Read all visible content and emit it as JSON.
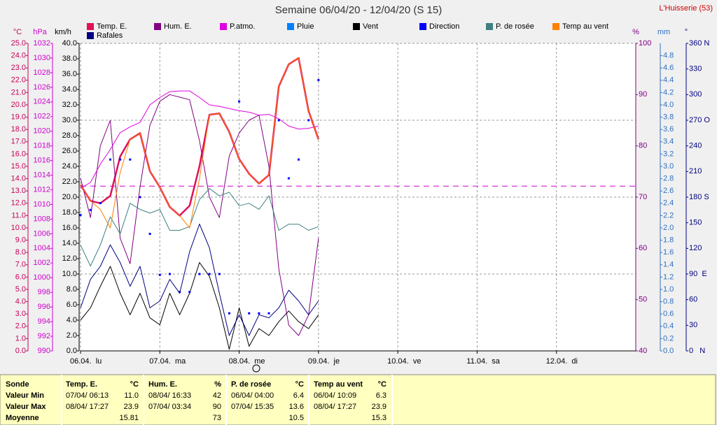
{
  "chart_data": {
    "type": "line",
    "title": "Semaine 06/04/20 - 12/04/20 (S 15)",
    "location": "L'Huisserie (53)",
    "xlim": [
      0,
      168
    ],
    "xticks": [
      {
        "value": 0,
        "label": "06.04.  lu"
      },
      {
        "value": 24,
        "label": "07.04.  ma"
      },
      {
        "value": 48,
        "label": "08.04.  me"
      },
      {
        "value": 72,
        "label": "09.04.  je"
      },
      {
        "value": 96,
        "label": "10.04.  ve"
      },
      {
        "value": 120,
        "label": "11.04.  sa"
      },
      {
        "value": 144,
        "label": "12.04.  di"
      }
    ],
    "x": [
      0,
      3,
      6,
      9,
      12,
      15,
      18,
      21,
      24,
      27,
      30,
      33,
      36,
      39,
      42,
      45,
      48,
      51,
      54,
      57,
      60,
      63,
      66,
      69,
      72
    ],
    "axes": [
      {
        "id": "temp",
        "label": "°C",
        "side": "left",
        "color": "#c8005a",
        "lim": [
          0,
          25
        ],
        "ticks": [
          {
            "value": 0,
            "label": "0.0"
          },
          {
            "value": 1,
            "label": "1.0"
          },
          {
            "value": 2,
            "label": "2.0"
          },
          {
            "value": 3,
            "label": "3.0"
          },
          {
            "value": 4,
            "label": "4.0"
          },
          {
            "value": 5,
            "label": "5.0"
          },
          {
            "value": 6,
            "label": "6.0"
          },
          {
            "value": 7,
            "label": "7.0"
          },
          {
            "value": 8,
            "label": "8.0"
          },
          {
            "value": 9,
            "label": "9.0"
          },
          {
            "value": 10,
            "label": "10.0"
          },
          {
            "value": 11,
            "label": "11.0"
          },
          {
            "value": 12,
            "label": "12.0"
          },
          {
            "value": 13,
            "label": "13.0"
          },
          {
            "value": 14,
            "label": "14.0"
          },
          {
            "value": 15,
            "label": "15.0"
          },
          {
            "value": 16,
            "label": "16.0"
          },
          {
            "value": 17,
            "label": "17.0"
          },
          {
            "value": 18,
            "label": "18.0"
          },
          {
            "value": 19,
            "label": "19.0"
          },
          {
            "value": 20,
            "label": "20.0"
          },
          {
            "value": 21,
            "label": "21.0"
          },
          {
            "value": 22,
            "label": "22.0"
          },
          {
            "value": 23,
            "label": "23.0"
          },
          {
            "value": 24,
            "label": "24.0"
          },
          {
            "value": 25,
            "label": "25.0"
          }
        ]
      },
      {
        "id": "hpa",
        "label": "hPa",
        "side": "left",
        "color": "#d000d0",
        "lim": [
          990,
          1032
        ],
        "ticks": [
          990,
          992,
          994,
          996,
          998,
          1000,
          1002,
          1004,
          1006,
          1008,
          1010,
          1012,
          1014,
          1016,
          1018,
          1020,
          1022,
          1024,
          1026,
          1028,
          1030,
          1032
        ]
      },
      {
        "id": "kmh",
        "label": "km/h",
        "side": "left",
        "color": "#000000",
        "lim": [
          0,
          40
        ],
        "grid": [
          10,
          20,
          30,
          40
        ],
        "ticks": [
          {
            "value": 0,
            "label": "0.0"
          },
          {
            "value": 2,
            "label": "2.0"
          },
          {
            "value": 4,
            "label": "4.0"
          },
          {
            "value": 6,
            "label": "6.0"
          },
          {
            "value": 8,
            "label": "8.0"
          },
          {
            "value": 10,
            "label": "10.0"
          },
          {
            "value": 12,
            "label": "12.0"
          },
          {
            "value": 14,
            "label": "14.0"
          },
          {
            "value": 16,
            "label": "16.0"
          },
          {
            "value": 18,
            "label": "18.0"
          },
          {
            "value": 20,
            "label": "20.0"
          },
          {
            "value": 22,
            "label": "22.0"
          },
          {
            "value": 24,
            "label": "24.0"
          },
          {
            "value": 26,
            "label": "26.0"
          },
          {
            "value": 28,
            "label": "28.0"
          },
          {
            "value": 30,
            "label": "30.0"
          },
          {
            "value": 32,
            "label": "32.0"
          },
          {
            "value": 34,
            "label": "34.0"
          },
          {
            "value": 36,
            "label": "36.0"
          },
          {
            "value": 38,
            "label": "38.0"
          },
          {
            "value": 40,
            "label": "40.0"
          }
        ]
      },
      {
        "id": "pct",
        "label": "%",
        "side": "right",
        "color": "#800080",
        "lim": [
          40,
          100
        ],
        "ticks": [
          40,
          50,
          60,
          70,
          80,
          90,
          100
        ]
      },
      {
        "id": "mm",
        "label": "mm",
        "side": "right",
        "color": "#3070c0",
        "lim": [
          0,
          5
        ],
        "ticks": [
          {
            "value": 0,
            "label": "0.0"
          },
          {
            "value": 0.2,
            "label": "0.2"
          },
          {
            "value": 0.4,
            "label": "0.4"
          },
          {
            "value": 0.6,
            "label": "0.6"
          },
          {
            "value": 0.8,
            "label": "0.8"
          },
          {
            "value": 1,
            "label": "1.0"
          },
          {
            "value": 1.2,
            "label": "1.2"
          },
          {
            "value": 1.4,
            "label": "1.4"
          },
          {
            "value": 1.6,
            "label": "1.6"
          },
          {
            "value": 1.8,
            "label": "1.8"
          },
          {
            "value": 2,
            "label": "2.0"
          },
          {
            "value": 2.2,
            "label": "2.2"
          },
          {
            "value": 2.4,
            "label": "2.4"
          },
          {
            "value": 2.6,
            "label": "2.6"
          },
          {
            "value": 2.8,
            "label": "2.8"
          },
          {
            "value": 3,
            "label": "3.0"
          },
          {
            "value": 3.2,
            "label": "3.2"
          },
          {
            "value": 3.4,
            "label": "3.4"
          },
          {
            "value": 3.6,
            "label": "3.6"
          },
          {
            "value": 3.8,
            "label": "3.8"
          },
          {
            "value": 4,
            "label": "4.0"
          },
          {
            "value": 4.2,
            "label": "4.2"
          },
          {
            "value": 4.4,
            "label": "4.4"
          },
          {
            "value": 4.6,
            "label": "4.6"
          },
          {
            "value": 4.8,
            "label": "4.8"
          }
        ]
      },
      {
        "id": "deg",
        "label": "°",
        "side": "right",
        "color": "#000080",
        "lim": [
          0,
          360
        ],
        "ticks": [
          {
            "value": 0,
            "label": "0   N"
          },
          30,
          60,
          {
            "value": 90,
            "label": "90  E"
          },
          120,
          150,
          {
            "value": 180,
            "label": "180 S"
          },
          210,
          240,
          {
            "value": 270,
            "label": "270 O"
          },
          300,
          330,
          {
            "value": 360,
            "label": "360 N"
          }
        ]
      }
    ],
    "reference_line": {
      "axis": "hpa",
      "value": 1012.5,
      "color": "#d000d0"
    },
    "series": [
      {
        "name": "Temp. E.",
        "color": "#e0105a",
        "axis": "temp",
        "width": 2.5,
        "values": [
          13.5,
          12.2,
          12.0,
          12.6,
          15.8,
          17.2,
          17.7,
          14.6,
          13.3,
          11.7,
          11.0,
          11.8,
          15.0,
          19.2,
          19.3,
          17.8,
          15.6,
          14.4,
          13.6,
          14.3,
          21.5,
          23.3,
          23.8,
          19.5,
          17.2
        ]
      },
      {
        "name": "Hum. E.",
        "color": "#800080",
        "axis": "pct",
        "width": 1,
        "values": [
          73.7,
          66,
          80,
          85,
          62,
          57,
          72,
          84,
          88.7,
          90,
          89.5,
          89,
          81,
          70,
          66,
          78,
          82.5,
          85,
          86,
          76,
          56,
          45,
          43,
          47,
          62
        ]
      },
      {
        "name": "P.atmo.",
        "color": "#e000e0",
        "axis": "hpa",
        "width": 1,
        "values": [
          1012.2,
          1013,
          1015.5,
          1017.5,
          1019.8,
          1020.6,
          1021.2,
          1023.6,
          1024.6,
          1025.4,
          1025.5,
          1025.5,
          1024.6,
          1023.6,
          1023.4,
          1023.1,
          1022.8,
          1022.6,
          1022.2,
          1022.3,
          1021.7,
          1020.7,
          1020.3,
          1020.4,
          1020.7
        ]
      },
      {
        "name": "Pluie",
        "color": "#0080ff",
        "axis": "mm",
        "width": 1,
        "values": [
          null,
          null,
          null,
          null,
          null,
          null,
          null,
          null,
          null,
          null,
          null,
          null,
          null,
          null,
          null,
          null,
          null,
          null,
          null,
          null,
          null,
          null,
          null,
          null,
          null
        ]
      },
      {
        "name": "Vent",
        "color": "#000000",
        "axis": "kmh",
        "width": 1,
        "values": [
          4,
          5.6,
          8.4,
          11,
          7.5,
          4.7,
          7.5,
          4.3,
          3.4,
          7.5,
          4.7,
          7.5,
          11.5,
          9.7,
          5.6,
          0.2,
          5.6,
          0.6,
          2.9,
          2,
          3.8,
          5.2,
          3.8,
          2.9,
          4.7
        ]
      },
      {
        "name": "Direction",
        "color": "#0000ff",
        "axis": "deg",
        "style": "dots",
        "values": [
          159,
          165,
          173,
          224,
          224,
          224,
          180,
          137,
          89,
          90,
          69,
          69,
          90,
          90,
          90,
          44,
          292,
          44,
          44,
          44,
          270,
          202,
          224,
          270,
          317
        ]
      },
      {
        "name": "P. de rosée",
        "color": "#408080",
        "axis": "temp",
        "width": 1,
        "values": [
          8.6,
          6.9,
          8.6,
          10.9,
          9.5,
          12,
          11.5,
          11.2,
          11.5,
          9.8,
          9.8,
          10.1,
          12.3,
          13.2,
          12.6,
          12.9,
          11.8,
          12,
          11.5,
          12.6,
          9.8,
          10.3,
          10.3,
          9.8,
          10.1
        ]
      },
      {
        "name": "Temp au vent",
        "color": "#ff8000",
        "axis": "temp",
        "width": 1,
        "values": [
          13.5,
          12.2,
          11.5,
          10.0,
          14.5,
          17.2,
          17.7,
          14.6,
          13.3,
          11.7,
          11.0,
          10.0,
          14.0,
          19.2,
          19.3,
          17.8,
          15.6,
          14.4,
          13.6,
          14.3,
          21.5,
          23.3,
          23.8,
          19.5,
          17.2
        ]
      },
      {
        "name": "Rafales",
        "color": "#000080",
        "axis": "kmh",
        "width": 1,
        "values": [
          5.6,
          9.3,
          11,
          13.8,
          11.5,
          8.4,
          11,
          5.6,
          6.5,
          9.3,
          7.5,
          12.9,
          16.5,
          13.4,
          7.5,
          2,
          4.7,
          2,
          4.7,
          4.3,
          5.6,
          7.9,
          6.5,
          4.7,
          6.5
        ]
      }
    ]
  },
  "stats": {
    "header": "Sonde",
    "row_labels": [
      "Valeur Min",
      "Valeur Max",
      "Moyenne"
    ],
    "columns": [
      {
        "name": "Temp. E.",
        "unit": "°C",
        "rows": [
          [
            "07/04/ 06:13",
            "11.0"
          ],
          [
            "08/04/ 17:27",
            "23.9"
          ],
          [
            "",
            "15.81"
          ]
        ]
      },
      {
        "name": "Hum. E.",
        "unit": "%",
        "rows": [
          [
            "08/04/ 16:33",
            "42"
          ],
          [
            "07/04/ 03:34",
            "90"
          ],
          [
            "",
            "73"
          ]
        ]
      },
      {
        "name": "P. de rosée",
        "unit": "°C",
        "rows": [
          [
            "06/04/ 04:00",
            "6.4"
          ],
          [
            "07/04/ 15:35",
            "13.6"
          ],
          [
            "",
            "10.5"
          ]
        ]
      },
      {
        "name": "Temp au vent",
        "unit": "°C",
        "rows": [
          [
            "06/04/ 10:09",
            "6.3"
          ],
          [
            "08/04/ 17:27",
            "23.9"
          ],
          [
            "",
            "15.3"
          ]
        ]
      }
    ]
  }
}
